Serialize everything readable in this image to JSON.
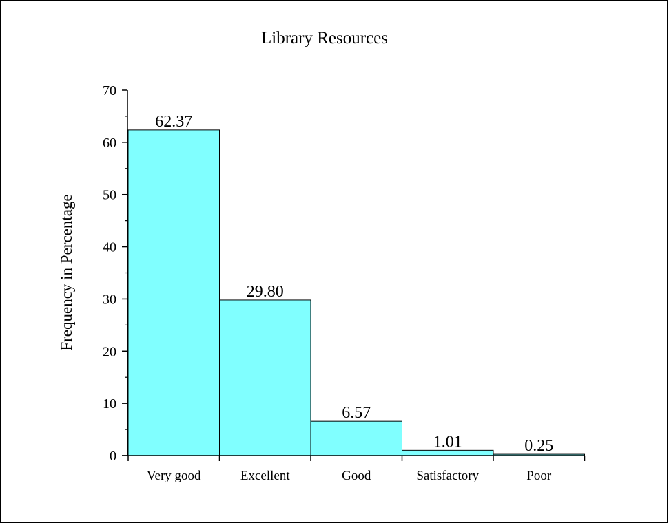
{
  "chart_data": {
    "type": "bar",
    "title": "Library Resources",
    "xlabel": "",
    "ylabel": "Frequency in Percentage",
    "categories": [
      "Very good",
      "Excellent",
      "Good",
      "Satisfactory",
      "Poor"
    ],
    "values": [
      62.37,
      29.8,
      6.57,
      1.01,
      0.25
    ],
    "value_labels": [
      "62.37",
      "29.80",
      "6.57",
      "1.01",
      "0.25"
    ],
    "ylim": [
      0,
      70
    ],
    "yticks": [
      0,
      10,
      20,
      30,
      40,
      50,
      60,
      70
    ],
    "ytick_labels": [
      "0",
      "10",
      "20",
      "30",
      "40",
      "50",
      "60",
      "70"
    ],
    "grid": false,
    "legend": "none",
    "bar_color": "#80ffff",
    "bar_edge_color": "#000000"
  }
}
